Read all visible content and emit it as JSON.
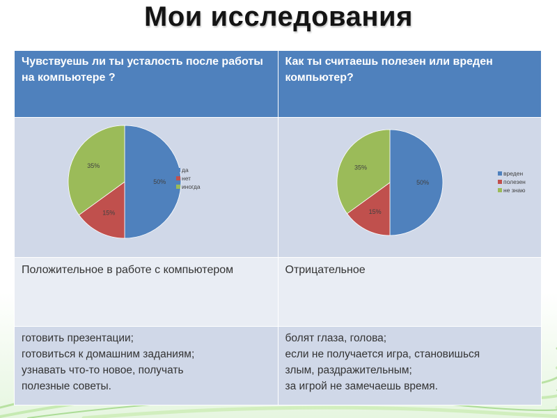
{
  "page": {
    "title": "Мои исследования"
  },
  "table": {
    "header_left": "Чувствуешь ли ты усталость после работы на компьютере ?",
    "header_right": "Как ты считаешь полезен или вреден компьютер?",
    "positive_heading": "Положительное в работе с компьютером",
    "negative_heading": "Отрицательное",
    "positive_text": "готовить презентации;\nготовиться к домашним заданиям;\nузнавать что-то новое, получать\nполезные советы.",
    "negative_text": "болят глаза, голова;\nесли не получается игра, становишься\nзлым, раздражительным;\nза игрой не замечаешь время."
  },
  "colors": {
    "header": "#4f81bd",
    "series": [
      "#4f81bd",
      "#c0504d",
      "#9bbb59"
    ]
  },
  "chart_data": [
    {
      "type": "pie",
      "categories": [
        "да",
        "нет",
        "иногда"
      ],
      "values": [
        50,
        15,
        35
      ],
      "labels": [
        "50%",
        "15%",
        "35%"
      ],
      "legend": "right"
    },
    {
      "type": "pie",
      "categories": [
        "вреден",
        "полезен",
        "не знаю"
      ],
      "values": [
        50,
        15,
        35
      ],
      "labels": [
        "50%",
        "15%",
        "35%"
      ],
      "legend": "right"
    }
  ]
}
